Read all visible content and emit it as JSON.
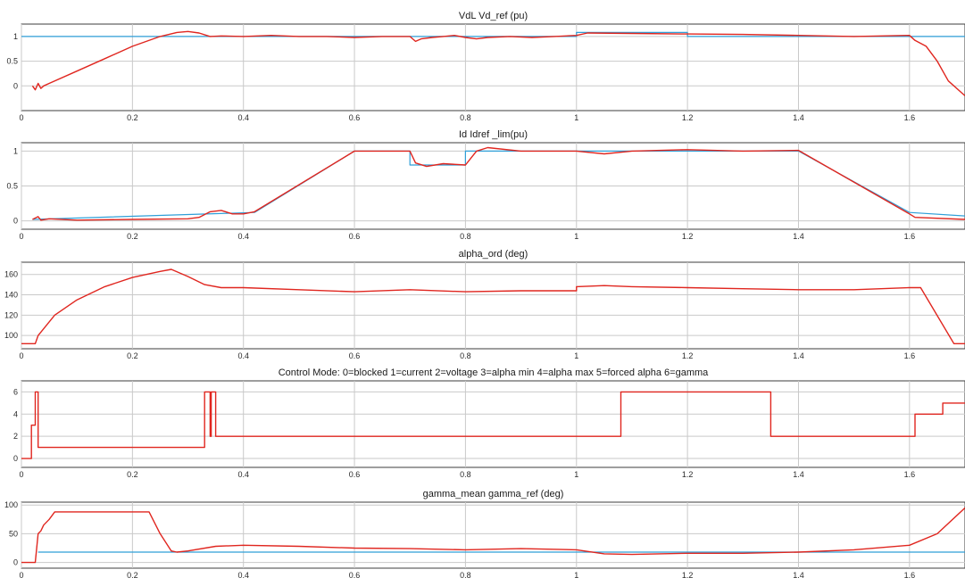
{
  "chart_data": [
    {
      "type": "line",
      "title": "VdL  Vd_ref (pu)",
      "xlim": [
        0,
        1.7
      ],
      "ylim": [
        -0.5,
        1.25
      ],
      "xticks": [
        0,
        0.2,
        0.4,
        0.6,
        0.8,
        1,
        1.2,
        1.4,
        1.6
      ],
      "xtick_labels": [
        "0",
        "0.2",
        "0.4",
        "0.6",
        "0.8",
        "1",
        "1.2",
        "1.4",
        "1.6"
      ],
      "yticks": [
        0,
        0.5,
        1
      ],
      "ytick_labels": [
        "0",
        "0.5",
        "1"
      ],
      "grid": true,
      "series": [
        {
          "color": "#2f9fd8",
          "x": [
            0,
            1.0,
            1.0,
            1.2,
            1.2,
            1.7
          ],
          "y": [
            1,
            1,
            1.08,
            1.08,
            1,
            1
          ]
        },
        {
          "color": "#e0261f",
          "x": [
            0.02,
            0.025,
            0.03,
            0.035,
            0.04,
            0.05,
            0.1,
            0.15,
            0.2,
            0.25,
            0.28,
            0.3,
            0.32,
            0.34,
            0.36,
            0.4,
            0.45,
            0.5,
            0.55,
            0.6,
            0.65,
            0.68,
            0.7,
            0.71,
            0.72,
            0.74,
            0.76,
            0.78,
            0.8,
            0.82,
            0.84,
            0.88,
            0.92,
            0.96,
            1.0,
            1.02,
            1.1,
            1.2,
            1.3,
            1.4,
            1.5,
            1.6,
            1.61,
            1.63,
            1.65,
            1.67,
            1.7
          ],
          "y": [
            0.0,
            -0.08,
            0.05,
            -0.05,
            0.0,
            0.05,
            0.3,
            0.55,
            0.8,
            1.0,
            1.08,
            1.1,
            1.07,
            1.0,
            1.01,
            1.0,
            1.02,
            1.0,
            1.0,
            0.98,
            1.0,
            1.0,
            1.0,
            0.9,
            0.95,
            0.98,
            1.0,
            1.02,
            0.98,
            0.95,
            0.98,
            1.0,
            0.98,
            1.0,
            1.02,
            1.07,
            1.06,
            1.05,
            1.04,
            1.02,
            1.0,
            1.02,
            0.92,
            0.8,
            0.5,
            0.1,
            -0.2
          ]
        }
      ]
    },
    {
      "type": "line",
      "title": "Id  Idref _lim(pu)",
      "xlim": [
        0,
        1.7
      ],
      "ylim": [
        -0.12,
        1.12
      ],
      "xticks": [
        0,
        0.2,
        0.4,
        0.6,
        0.8,
        1,
        1.2,
        1.4,
        1.6
      ],
      "xtick_labels": [
        "0",
        "0.2",
        "0.4",
        "0.6",
        "0.8",
        "1",
        "1.2",
        "1.4",
        "1.6"
      ],
      "yticks": [
        0,
        0.5,
        1
      ],
      "ytick_labels": [
        "0",
        "0.5",
        "1"
      ],
      "grid": true,
      "series": [
        {
          "color": "#2f9fd8",
          "x": [
            0.02,
            0.42,
            0.6,
            0.7,
            0.7,
            0.8,
            0.8,
            1.4,
            1.6,
            1.7
          ],
          "y": [
            0.02,
            0.12,
            1.0,
            1.0,
            0.8,
            0.8,
            1.0,
            1.0,
            0.12,
            0.07
          ]
        },
        {
          "color": "#e0261f",
          "x": [
            0.02,
            0.03,
            0.035,
            0.05,
            0.1,
            0.2,
            0.3,
            0.32,
            0.34,
            0.36,
            0.38,
            0.4,
            0.42,
            0.6,
            0.62,
            0.7,
            0.71,
            0.73,
            0.76,
            0.8,
            0.81,
            0.82,
            0.84,
            0.9,
            1.0,
            1.05,
            1.1,
            1.2,
            1.3,
            1.4,
            1.6,
            1.61,
            1.7
          ],
          "y": [
            0.02,
            0.06,
            0.01,
            0.03,
            0.01,
            0.02,
            0.03,
            0.05,
            0.13,
            0.15,
            0.1,
            0.1,
            0.13,
            1.0,
            1.0,
            1.0,
            0.83,
            0.78,
            0.82,
            0.8,
            0.9,
            1.0,
            1.05,
            1.0,
            1.0,
            0.96,
            1.0,
            1.02,
            1.0,
            1.01,
            0.1,
            0.05,
            0.02
          ]
        }
      ]
    },
    {
      "type": "line",
      "title": "alpha_ord (deg)",
      "xlim": [
        0,
        1.7
      ],
      "ylim": [
        87,
        172
      ],
      "xticks": [
        0,
        0.2,
        0.4,
        0.6,
        0.8,
        1,
        1.2,
        1.4,
        1.6
      ],
      "xtick_labels": [
        "0",
        "0.2",
        "0.4",
        "0.6",
        "0.8",
        "1",
        "1.2",
        "1.4",
        "1.6"
      ],
      "yticks": [
        100,
        120,
        140,
        160
      ],
      "ytick_labels": [
        "100",
        "120",
        "140",
        "160"
      ],
      "grid": true,
      "series": [
        {
          "color": "#e0261f",
          "x": [
            0,
            0.025,
            0.03,
            0.06,
            0.1,
            0.15,
            0.2,
            0.25,
            0.27,
            0.3,
            0.33,
            0.36,
            0.4,
            0.5,
            0.6,
            0.7,
            0.8,
            0.9,
            1.0,
            1.0,
            1.05,
            1.1,
            1.2,
            1.3,
            1.4,
            1.5,
            1.6,
            1.62,
            1.68,
            1.7
          ],
          "y": [
            92,
            92,
            100,
            120,
            135,
            148,
            157,
            163,
            165,
            158,
            150,
            147,
            147,
            145,
            143,
            145,
            143,
            144,
            144,
            148,
            149,
            148,
            147,
            146,
            145,
            145,
            147,
            147,
            92,
            92
          ]
        }
      ]
    },
    {
      "type": "line",
      "title": "Control Mode: 0=blocked  1=current  2=voltage  3=alpha min 4=alpha max  5=forced alpha  6=gamma",
      "xlim": [
        0,
        1.7
      ],
      "ylim": [
        -0.8,
        7
      ],
      "xticks": [
        0,
        0.2,
        0.4,
        0.6,
        0.8,
        1,
        1.2,
        1.4,
        1.6
      ],
      "xtick_labels": [
        "0",
        "0.2",
        "0.4",
        "0.6",
        "0.8",
        "1",
        "1.2",
        "1.4",
        "1.6"
      ],
      "yticks": [
        0,
        2,
        4,
        6
      ],
      "ytick_labels": [
        "0",
        "2",
        "4",
        "6"
      ],
      "grid": true,
      "series": [
        {
          "color": "#e0261f",
          "x": [
            0,
            0.018,
            0.018,
            0.025,
            0.025,
            0.03,
            0.03,
            0.33,
            0.33,
            0.34,
            0.34,
            0.342,
            0.342,
            0.35,
            0.35,
            0.355,
            0.355,
            1.08,
            1.08,
            1.35,
            1.35,
            1.61,
            1.61,
            1.66,
            1.66,
            1.7
          ],
          "y": [
            0,
            0,
            3,
            3,
            6,
            6,
            1,
            1,
            6,
            6,
            2,
            2,
            6,
            6,
            2,
            2,
            2,
            2,
            6,
            6,
            2,
            2,
            4,
            4,
            5,
            5
          ]
        }
      ]
    },
    {
      "type": "line",
      "title": "gamma_mean  gamma_ref (deg)",
      "xlim": [
        0,
        1.7
      ],
      "ylim": [
        -10,
        105
      ],
      "xticks": [
        0,
        0.2,
        0.4,
        0.6,
        0.8,
        1,
        1.2,
        1.4,
        1.6
      ],
      "xtick_labels": [
        "0",
        "0.2",
        "0.4",
        "0.6",
        "0.8",
        "1",
        "1.2",
        "1.4",
        "1.6"
      ],
      "yticks": [
        0,
        50,
        100
      ],
      "ytick_labels": [
        "0",
        "50",
        "100"
      ],
      "grid": true,
      "series": [
        {
          "color": "#2f9fd8",
          "x": [
            0.03,
            1.7
          ],
          "y": [
            18,
            18
          ]
        },
        {
          "color": "#e0261f",
          "x": [
            0,
            0.025,
            0.03,
            0.035,
            0.04,
            0.05,
            0.06,
            0.23,
            0.25,
            0.27,
            0.28,
            0.3,
            0.35,
            0.4,
            0.5,
            0.6,
            0.7,
            0.8,
            0.9,
            1.0,
            1.05,
            1.1,
            1.2,
            1.3,
            1.4,
            1.5,
            1.6,
            1.65,
            1.7
          ],
          "y": [
            0,
            0,
            50,
            55,
            65,
            75,
            88,
            88,
            50,
            20,
            18,
            20,
            28,
            30,
            28,
            25,
            24,
            22,
            24,
            22,
            15,
            14,
            16,
            16,
            18,
            22,
            30,
            50,
            95
          ]
        }
      ]
    }
  ]
}
